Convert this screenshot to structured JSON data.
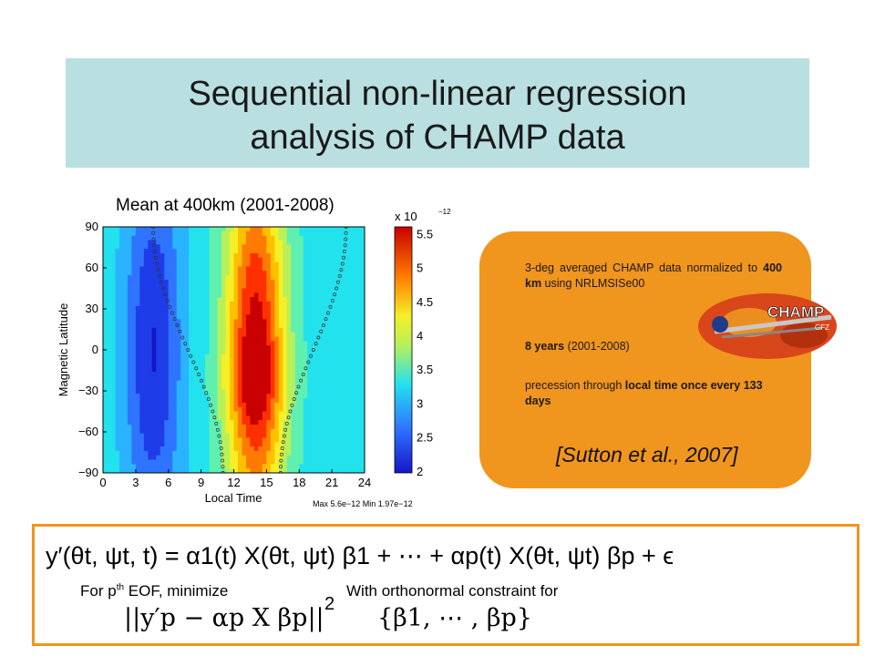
{
  "slide": {
    "title_line1": "Sequential non-linear regression",
    "title_line2": "analysis of CHAMP data"
  },
  "chart_data": {
    "type": "heatmap",
    "title": "Mean at 400km (2001-2008)",
    "xlabel": "Local Time",
    "ylabel": "Magnetic Latitude",
    "x_ticks": [
      "0",
      "3",
      "6",
      "9",
      "12",
      "15",
      "18",
      "21",
      "24"
    ],
    "y_ticks": [
      "90",
      "60",
      "30",
      "0",
      "−30",
      "−60",
      "−90"
    ],
    "xlim": [
      0,
      24
    ],
    "ylim": [
      -90,
      90
    ],
    "colorbar_scale_label": "x 10",
    "colorbar_exponent": "−12",
    "colorbar_ticks": [
      "5.5",
      "5",
      "4.5",
      "4",
      "3.5",
      "3",
      "2.5",
      "2"
    ],
    "colorbar_range": [
      1.97e-12,
      5.6e-12
    ],
    "footer": "Max 5.6e−12  Min 1.97e−12",
    "colors": [
      "#1515c8",
      "#1e3ce8",
      "#2f74ff",
      "#2ab4ff",
      "#22e2ee",
      "#5ff0b0",
      "#b8f05a",
      "#f5ef28",
      "#ffc000",
      "#ff7a00",
      "#ff3000",
      "#c80000"
    ]
  },
  "info": {
    "line1_a": "3-deg averaged CHAMP data normalized to ",
    "line1_b": "400 km",
    "line1_c": " using NRLMSISe00",
    "line2_a": "8 years",
    "line2_b": " (2001-2008)",
    "line3_a": "precession through ",
    "line3_b": "local time once every 133 days",
    "citation": "[Sutton et al., 2007]",
    "logo_text": "CHAMP",
    "logo_sub": "GFZ"
  },
  "equation": {
    "main": "y′(θt, ψt, t) = α1(t) X(θt, ψt) β1 + ⋯ + αp(t) X(θt, ψt) βp + ϵ",
    "minimize_label_a": "For p",
    "minimize_label_sup": "th",
    "minimize_label_b": " EOF, minimize",
    "constraint_label": "With orthonormal constraint for",
    "norm_expr": "||y′p − αp X βp||",
    "square": "2",
    "set_expr": "{β1, ⋯ , βp}"
  }
}
